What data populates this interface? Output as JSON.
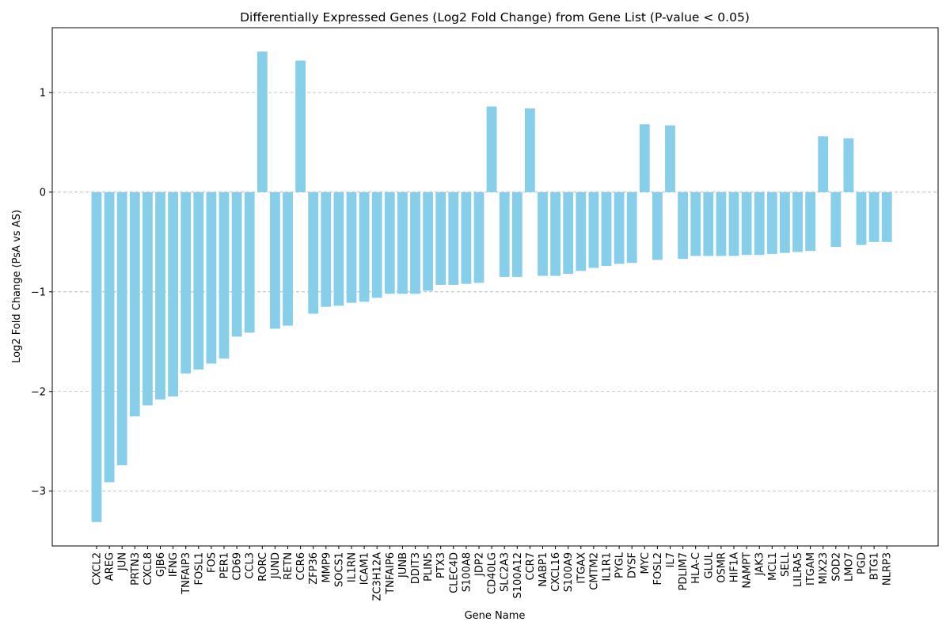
{
  "chart_data": {
    "type": "bar",
    "title": "Differentially Expressed Genes (Log2 Fold Change) from Gene List (P-value < 0.05)",
    "xlabel": "Gene Name",
    "ylabel": "Log2 Fold Change (PsA vs AS)",
    "ylim": [
      -3.55,
      1.65
    ],
    "yticks": [
      -3,
      -2,
      -1,
      0,
      1
    ],
    "grid": "y-axis dashed",
    "bar_color": "#87ceeb",
    "categories": [
      "CXCL2",
      "AREG",
      "JUN",
      "PRTN3",
      "CXCL8",
      "GJB6",
      "IFNG",
      "TNFAIP3",
      "FOSL1",
      "FOS",
      "PER1",
      "CD69",
      "CCL3",
      "RORC",
      "JUND",
      "RETN",
      "CCR6",
      "ZFP36",
      "MMP9",
      "SOCS1",
      "IL1RN",
      "ICAM1",
      "ZC3H12A",
      "TNFAIP6",
      "JUNB",
      "DDIT3",
      "PLIN5",
      "PTX3",
      "CLEC4D",
      "S100A8",
      "JDP2",
      "CD40LG",
      "SLC2A3",
      "S100A12",
      "CCR7",
      "NABP1",
      "CXCL16",
      "S100A9",
      "ITGAX",
      "CMTM2",
      "IL1R1",
      "PYGL",
      "DYSF",
      "MYC",
      "FOSL2",
      "IL7",
      "PDLIM7",
      "HLA-C",
      "GLUL",
      "OSMR",
      "HIF1A",
      "NAMPT",
      "JAK3",
      "MCL1",
      "SELL",
      "LILRA5",
      "ITGAM",
      "MIX23",
      "SOD2",
      "LMO7",
      "PGD",
      "BTG1",
      "NLRP3"
    ],
    "values": [
      -3.31,
      -2.91,
      -2.74,
      -2.25,
      -2.14,
      -2.08,
      -2.05,
      -1.82,
      -1.78,
      -1.72,
      -1.67,
      -1.45,
      -1.41,
      1.41,
      -1.37,
      -1.34,
      1.32,
      -1.22,
      -1.15,
      -1.14,
      -1.11,
      -1.1,
      -1.06,
      -1.02,
      -1.02,
      -1.02,
      -0.99,
      -0.93,
      -0.93,
      -0.92,
      -0.91,
      0.86,
      -0.85,
      -0.85,
      0.84,
      -0.84,
      -0.84,
      -0.82,
      -0.79,
      -0.76,
      -0.74,
      -0.72,
      -0.71,
      0.68,
      -0.68,
      0.67,
      -0.67,
      -0.64,
      -0.64,
      -0.64,
      -0.64,
      -0.63,
      -0.63,
      -0.62,
      -0.61,
      -0.6,
      -0.59,
      0.56,
      -0.55,
      0.54,
      -0.53,
      -0.5,
      -0.5
    ]
  }
}
